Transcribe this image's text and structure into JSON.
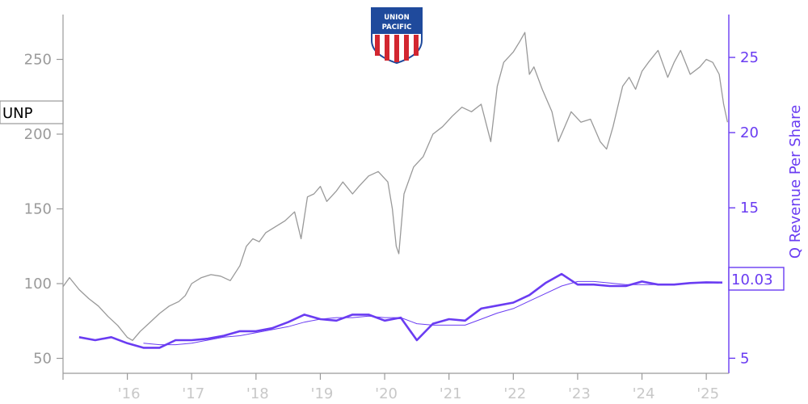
{
  "chart_data": {
    "type": "line",
    "ticker": "UNP",
    "logo_text": [
      "UNION",
      "PACIFIC"
    ],
    "ylabel_right": "Q Revenue Per Share",
    "last_value_label": "10.03",
    "x_ticks": [
      "'16",
      "'17",
      "'18",
      "'19",
      "'20",
      "'21",
      "'22",
      "'23",
      "'24",
      "'25"
    ],
    "left_axis": {
      "ylim": [
        40,
        280
      ],
      "ticks": [
        "50",
        "100",
        "150",
        "200",
        "250"
      ]
    },
    "right_axis": {
      "ylim": [
        4,
        27.85
      ],
      "ticks": [
        "5",
        "10",
        "15",
        "20",
        "25"
      ]
    },
    "xlim": [
      2015.0,
      2025.35
    ],
    "colors": {
      "price": "#999999",
      "revenue": "#6a3cf2",
      "axis_left": "#9a9a9a",
      "axis_right": "#6a3cf2",
      "logo_blue": "#1f4a9c",
      "logo_red": "#d22630"
    },
    "series": [
      {
        "key": "price",
        "axis": "left",
        "x": [
          2015.0,
          2015.1,
          2015.25,
          2015.4,
          2015.55,
          2015.7,
          2015.85,
          2016.0,
          2016.08,
          2016.2,
          2016.35,
          2016.5,
          2016.65,
          2016.8,
          2016.9,
          2017.0,
          2017.15,
          2017.3,
          2017.45,
          2017.6,
          2017.75,
          2017.85,
          2017.95,
          2018.05,
          2018.15,
          2018.3,
          2018.45,
          2018.6,
          2018.7,
          2018.8,
          2018.9,
          2019.0,
          2019.1,
          2019.25,
          2019.35,
          2019.5,
          2019.6,
          2019.75,
          2019.9,
          2020.05,
          2020.12,
          2020.18,
          2020.22,
          2020.3,
          2020.45,
          2020.6,
          2020.75,
          2020.9,
          2021.05,
          2021.2,
          2021.35,
          2021.5,
          2021.65,
          2021.75,
          2021.85,
          2022.0,
          2022.1,
          2022.18,
          2022.25,
          2022.32,
          2022.45,
          2022.6,
          2022.7,
          2022.8,
          2022.9,
          2023.05,
          2023.2,
          2023.35,
          2023.45,
          2023.55,
          2023.7,
          2023.8,
          2023.9,
          2024.0,
          2024.1,
          2024.25,
          2024.4,
          2024.5,
          2024.6,
          2024.75,
          2024.9,
          2025.0,
          2025.1,
          2025.2,
          2025.27,
          2025.33
        ],
        "y": [
          98,
          104,
          96,
          90,
          85,
          78,
          72,
          64,
          62,
          68,
          74,
          80,
          85,
          88,
          92,
          100,
          104,
          106,
          105,
          102,
          112,
          125,
          130,
          128,
          134,
          138,
          142,
          148,
          130,
          158,
          160,
          165,
          155,
          162,
          168,
          160,
          165,
          172,
          175,
          168,
          150,
          125,
          120,
          160,
          178,
          185,
          200,
          205,
          212,
          218,
          215,
          220,
          195,
          232,
          248,
          255,
          262,
          268,
          240,
          245,
          230,
          215,
          195,
          205,
          215,
          208,
          210,
          195,
          190,
          205,
          232,
          238,
          230,
          242,
          248,
          256,
          238,
          248,
          256,
          240,
          245,
          250,
          248,
          240,
          220,
          208
        ]
      },
      {
        "key": "revenue",
        "axis": "right",
        "x": [
          2015.25,
          2015.5,
          2015.75,
          2016.0,
          2016.25,
          2016.5,
          2016.75,
          2017.0,
          2017.25,
          2017.5,
          2017.75,
          2018.0,
          2018.25,
          2018.5,
          2018.75,
          2019.0,
          2019.25,
          2019.5,
          2019.75,
          2020.0,
          2020.25,
          2020.5,
          2020.75,
          2021.0,
          2021.25,
          2021.5,
          2021.75,
          2022.0,
          2022.25,
          2022.5,
          2022.75,
          2023.0,
          2023.25,
          2023.5,
          2023.75,
          2024.0,
          2024.25,
          2024.5,
          2024.75,
          2025.0,
          2025.25
        ],
        "y": [
          6.4,
          6.2,
          6.4,
          6.0,
          5.7,
          5.7,
          6.2,
          6.2,
          6.3,
          6.5,
          6.8,
          6.8,
          7.0,
          7.4,
          7.9,
          7.6,
          7.5,
          7.9,
          7.9,
          7.5,
          7.7,
          6.2,
          7.3,
          7.6,
          7.5,
          8.3,
          8.5,
          8.7,
          9.2,
          10.0,
          10.6,
          9.9,
          9.9,
          9.8,
          9.8,
          10.1,
          9.9,
          9.9,
          10.0,
          10.05,
          10.03
        ]
      },
      {
        "key": "revenue_trend",
        "axis": "right",
        "x": [
          2016.25,
          2016.5,
          2016.75,
          2017.0,
          2017.25,
          2017.5,
          2017.75,
          2018.0,
          2018.25,
          2018.5,
          2018.75,
          2019.0,
          2019.25,
          2019.5,
          2019.75,
          2020.0,
          2020.25,
          2020.5,
          2020.75,
          2021.0,
          2021.25,
          2021.5,
          2021.75,
          2022.0,
          2022.25,
          2022.5,
          2022.75,
          2023.0,
          2023.25,
          2023.5,
          2023.75,
          2024.0,
          2024.25,
          2024.5,
          2024.75,
          2025.0,
          2025.25
        ],
        "y": [
          6.0,
          5.9,
          5.9,
          6.0,
          6.2,
          6.4,
          6.5,
          6.7,
          6.9,
          7.1,
          7.4,
          7.6,
          7.7,
          7.7,
          7.8,
          7.7,
          7.7,
          7.3,
          7.2,
          7.2,
          7.2,
          7.6,
          8.0,
          8.3,
          8.8,
          9.3,
          9.8,
          10.1,
          10.1,
          10.0,
          9.9,
          9.9,
          9.9,
          9.9,
          10.0,
          10.0,
          10.03
        ]
      }
    ]
  }
}
